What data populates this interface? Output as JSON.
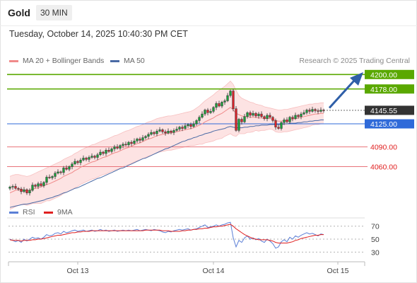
{
  "header": {
    "symbol": "Gold",
    "timeframe": "30 MIN"
  },
  "timestamp": "Tuesday, October 14, 2025 10:40:30 PM CET",
  "legend": [
    {
      "name": "MA 20 + Bollinger Bands",
      "color": "#f08a8a"
    },
    {
      "name": "MA 50",
      "color": "#4a6aa5"
    }
  ],
  "credit": "Research © 2025 Trading Central",
  "chart_data": {
    "type": "candlestick",
    "y_range": [
      4010,
      4210
    ],
    "x_ticks": [
      {
        "label": "Oct 13",
        "index": 24
      },
      {
        "label": "Oct 14",
        "index": 72
      },
      {
        "label": "Oct 15",
        "index": 116
      }
    ],
    "levels": [
      {
        "value": 4200.0,
        "label": "4200.00",
        "kind": "resistance"
      },
      {
        "value": 4178.0,
        "label": "4178.00",
        "kind": "resistance"
      },
      {
        "value": 4145.55,
        "label": "4145.55",
        "kind": "last"
      },
      {
        "value": 4125.0,
        "label": "4125.00",
        "kind": "pivot"
      },
      {
        "value": 4090.0,
        "label": "4090.00",
        "kind": "support"
      },
      {
        "value": 4060.0,
        "label": "4060.00",
        "kind": "support"
      }
    ],
    "close": [
      4029,
      4030,
      4027,
      4026,
      4022,
      4025,
      4020,
      4024,
      4032,
      4030,
      4034,
      4031,
      4036,
      4044,
      4043,
      4045,
      4050,
      4052,
      4051,
      4058,
      4056,
      4060,
      4064,
      4068,
      4066,
      4070,
      4073,
      4071,
      4074,
      4076,
      4074,
      4078,
      4082,
      4080,
      4085,
      4083,
      4087,
      4090,
      4088,
      4092,
      4094,
      4093,
      4097,
      4095,
      4099,
      4102,
      4100,
      4104,
      4106,
      4109,
      4112,
      4110,
      4114,
      4116,
      4113,
      4111,
      4114,
      4112,
      4115,
      4117,
      4120,
      4118,
      4122,
      4124,
      4121,
      4125,
      4130,
      4135,
      4140,
      4146,
      4142,
      4144,
      4150,
      4156,
      4152,
      4158,
      4160,
      4168,
      4175,
      4148,
      4115,
      4132,
      4128,
      4136,
      4142,
      4138,
      4141,
      4137,
      4140,
      4136,
      4133,
      4138,
      4135,
      4130,
      4120,
      4118,
      4127,
      4131,
      4128,
      4135,
      4133,
      4138,
      4136,
      4140,
      4142,
      4146,
      4144,
      4147,
      4145,
      4144,
      4146,
      4145
    ],
    "ma20": [
      4020,
      4022,
      4024,
      4025,
      4025,
      4024,
      4023,
      4024,
      4026,
      4027,
      4028,
      4029,
      4031,
      4033,
      4034,
      4036,
      4038,
      4040,
      4042,
      4045,
      4047,
      4049,
      4051,
      4054,
      4056,
      4059,
      4061,
      4063,
      4065,
      4067,
      4068,
      4070,
      4072,
      4074,
      4075,
      4077,
      4079,
      4081,
      4082,
      4084,
      4086,
      4088,
      4089,
      4091,
      4093,
      4095,
      4096,
      4098,
      4100,
      4102,
      4103,
      4105,
      4107,
      4108,
      4109,
      4110,
      4111,
      4111,
      4112,
      4113,
      4114,
      4115,
      4116,
      4117,
      4118,
      4119,
      4121,
      4123,
      4125,
      4128,
      4130,
      4132,
      4134,
      4137,
      4139,
      4141,
      4144,
      4147,
      4150,
      4146,
      4141,
      4139,
      4137,
      4136,
      4136,
      4135,
      4135,
      4135,
      4134,
      4134,
      4133,
      4133,
      4133,
      4132,
      4130,
      4129,
      4129,
      4130,
      4130,
      4131,
      4132,
      4133,
      4134,
      4135,
      4136,
      4137,
      4138,
      4139,
      4140,
      4140,
      4141,
      4141
    ],
    "bb_upper": [
      4045,
      4047,
      4048,
      4048,
      4047,
      4046,
      4045,
      4046,
      4048,
      4050,
      4052,
      4054,
      4056,
      4058,
      4060,
      4062,
      4064,
      4066,
      4068,
      4071,
      4073,
      4075,
      4077,
      4080,
      4082,
      4085,
      4087,
      4089,
      4091,
      4093,
      4094,
      4096,
      4098,
      4100,
      4101,
      4103,
      4105,
      4107,
      4108,
      4110,
      4112,
      4114,
      4115,
      4117,
      4119,
      4121,
      4122,
      4124,
      4126,
      4128,
      4129,
      4131,
      4133,
      4134,
      4135,
      4136,
      4137,
      4137,
      4138,
      4139,
      4140,
      4141,
      4142,
      4143,
      4144,
      4146,
      4149,
      4152,
      4156,
      4160,
      4163,
      4166,
      4169,
      4173,
      4176,
      4179,
      4182,
      4186,
      4190,
      4185,
      4176,
      4168,
      4164,
      4162,
      4160,
      4158,
      4157,
      4155,
      4154,
      4153,
      4151,
      4150,
      4149,
      4148,
      4147,
      4146,
      4146,
      4147,
      4147,
      4148,
      4149,
      4150,
      4151,
      4152,
      4153,
      4154,
      4155,
      4155,
      4156,
      4156,
      4157,
      4157
    ],
    "bb_lower": [
      3995,
      3997,
      3999,
      4001,
      4002,
      4002,
      4001,
      4002,
      4004,
      4004,
      4004,
      4004,
      4006,
      4008,
      4008,
      4010,
      4012,
      4014,
      4016,
      4019,
      4021,
      4023,
      4025,
      4028,
      4030,
      4033,
      4035,
      4037,
      4039,
      4041,
      4042,
      4044,
      4046,
      4048,
      4049,
      4051,
      4053,
      4055,
      4056,
      4058,
      4060,
      4062,
      4063,
      4065,
      4067,
      4069,
      4070,
      4072,
      4074,
      4076,
      4077,
      4079,
      4081,
      4082,
      4083,
      4084,
      4085,
      4085,
      4086,
      4087,
      4088,
      4089,
      4090,
      4091,
      4092,
      4092,
      4093,
      4094,
      4094,
      4096,
      4097,
      4098,
      4099,
      4101,
      4102,
      4103,
      4106,
      4108,
      4110,
      4107,
      4106,
      4110,
      4110,
      4110,
      4112,
      4112,
      4113,
      4115,
      4114,
      4115,
      4115,
      4116,
      4117,
      4116,
      4113,
      4112,
      4112,
      4113,
      4113,
      4114,
      4115,
      4116,
      4117,
      4118,
      4119,
      4120,
      4121,
      4123,
      4124,
      4124,
      4125,
      4125
    ],
    "ma50": [
      3998,
      3999,
      4000,
      4001,
      4002,
      4003,
      4003,
      4004,
      4005,
      4006,
      4007,
      4008,
      4009,
      4011,
      4012,
      4013,
      4015,
      4016,
      4018,
      4020,
      4021,
      4023,
      4025,
      4027,
      4028,
      4030,
      4032,
      4034,
      4036,
      4038,
      4040,
      4042,
      4043,
      4045,
      4047,
      4049,
      4051,
      4053,
      4055,
      4057,
      4058,
      4060,
      4062,
      4064,
      4066,
      4068,
      4070,
      4072,
      4073,
      4075,
      4077,
      4079,
      4081,
      4083,
      4085,
      4087,
      4088,
      4090,
      4092,
      4094,
      4096,
      4098,
      4099,
      4101,
      4102,
      4104,
      4105,
      4107,
      4108,
      4110,
      4111,
      4112,
      4114,
      4115,
      4116,
      4117,
      4118,
      4120,
      4121,
      4120,
      4119,
      4119,
      4119,
      4120,
      4120,
      4121,
      4121,
      4122,
      4122,
      4123,
      4123,
      4123,
      4124,
      4124,
      4124,
      4124,
      4124,
      4125,
      4125,
      4126,
      4126,
      4126,
      4127,
      4127,
      4128,
      4128,
      4129,
      4129,
      4130,
      4130,
      4131,
      4131
    ],
    "indicator": {
      "legend": [
        {
          "name": "RSI",
          "color": "#5b7fd6"
        },
        {
          "name": "9MA",
          "color": "#e02020"
        }
      ],
      "y_range": [
        15,
        85
      ],
      "levels": [
        {
          "value": 70,
          "label": "70"
        },
        {
          "value": 50,
          "label": "50"
        },
        {
          "value": 30,
          "label": "30"
        }
      ],
      "rsi": [
        50,
        48,
        46,
        48,
        45,
        50,
        47,
        50,
        53,
        51,
        52,
        50,
        53,
        57,
        55,
        56,
        59,
        60,
        58,
        62,
        60,
        61,
        63,
        64,
        62,
        63,
        64,
        62,
        63,
        64,
        62,
        63,
        65,
        63,
        64,
        62,
        63,
        64,
        62,
        63,
        64,
        63,
        64,
        63,
        64,
        65,
        63,
        64,
        65,
        64,
        63,
        65,
        64,
        63,
        61,
        60,
        62,
        61,
        63,
        64,
        65,
        64,
        65,
        66,
        64,
        65,
        66,
        68,
        70,
        72,
        68,
        69,
        70,
        72,
        70,
        72,
        73,
        75,
        76,
        52,
        38,
        48,
        45,
        52,
        55,
        50,
        52,
        49,
        51,
        47,
        45,
        50,
        47,
        43,
        36,
        38,
        46,
        49,
        46,
        53,
        50,
        55,
        53,
        56,
        58,
        60,
        58,
        59,
        57,
        55,
        58,
        57
      ],
      "ma9": [
        49,
        48,
        48,
        48,
        47,
        48,
        48,
        48,
        49,
        49,
        50,
        50,
        51,
        52,
        53,
        54,
        55,
        56,
        56,
        57,
        58,
        59,
        60,
        60,
        61,
        61,
        62,
        62,
        62,
        63,
        63,
        63,
        63,
        63,
        63,
        63,
        63,
        63,
        63,
        63,
        63,
        63,
        63,
        63,
        63,
        63,
        63,
        63,
        64,
        64,
        64,
        64,
        64,
        64,
        63,
        63,
        63,
        62,
        62,
        62,
        62,
        63,
        63,
        64,
        64,
        65,
        65,
        66,
        66,
        67,
        67,
        68,
        69,
        69,
        70,
        70,
        71,
        72,
        73,
        70,
        66,
        63,
        60,
        57,
        55,
        53,
        51,
        50,
        49,
        49,
        49,
        49,
        48,
        47,
        45,
        44,
        44,
        44,
        44,
        45,
        46,
        48,
        49,
        51,
        52,
        53,
        54,
        55,
        56,
        56,
        57,
        57
      ]
    }
  }
}
